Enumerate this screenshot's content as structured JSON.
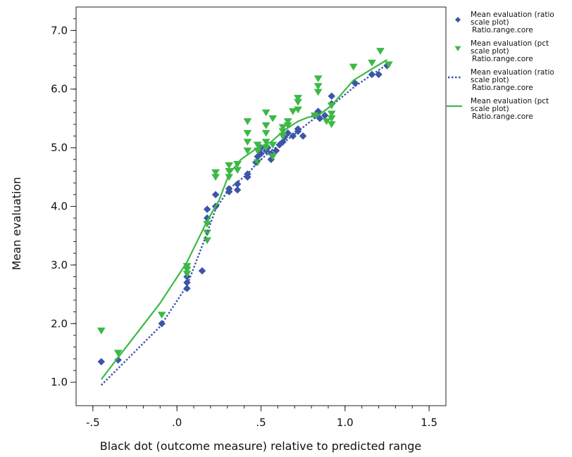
{
  "chart_data": {
    "type": "scatter",
    "title": "",
    "xlabel": "Black dot (outcome measure) relative to predicted range",
    "ylabel": "Mean evaluation",
    "xlim": [
      -0.6,
      1.6
    ],
    "ylim": [
      0.6,
      7.4
    ],
    "x_ticks": [
      -0.5,
      0.0,
      0.5,
      1.0,
      1.5
    ],
    "x_tick_labels": [
      "-.5",
      ".0",
      ".5",
      "1.0",
      "1.5"
    ],
    "y_ticks": [
      1.0,
      2.0,
      3.0,
      4.0,
      5.0,
      6.0,
      7.0
    ],
    "y_tick_labels": [
      "1.0",
      "2.0",
      "3.0",
      "4.0",
      "5.0",
      "6.0",
      "7.0"
    ],
    "grid": false,
    "legend_position": "right",
    "colors": {
      "ratio": "#3d55a8",
      "pct": "#3cb944"
    },
    "series": [
      {
        "name": "Mean evaluation (ratio scale plot) Ratio.range.core",
        "legend_lines": [
          "Mean evaluation (ratio",
          "scale plot)",
          "Ratio.range.core"
        ],
        "kind": "scatter",
        "marker": "diamond",
        "color": "#3d55a8",
        "points": [
          [
            -0.45,
            1.35
          ],
          [
            -0.35,
            1.38
          ],
          [
            -0.09,
            2.0
          ],
          [
            0.06,
            2.6
          ],
          [
            0.06,
            2.7
          ],
          [
            0.06,
            2.8
          ],
          [
            0.15,
            2.9
          ],
          [
            0.18,
            3.8
          ],
          [
            0.18,
            3.95
          ],
          [
            0.23,
            4.0
          ],
          [
            0.23,
            4.2
          ],
          [
            0.31,
            4.25
          ],
          [
            0.31,
            4.3
          ],
          [
            0.36,
            4.28
          ],
          [
            0.36,
            4.38
          ],
          [
            0.42,
            4.5
          ],
          [
            0.42,
            4.55
          ],
          [
            0.47,
            4.75
          ],
          [
            0.48,
            4.85
          ],
          [
            0.5,
            4.9
          ],
          [
            0.5,
            5.0
          ],
          [
            0.53,
            4.95
          ],
          [
            0.54,
            5.0
          ],
          [
            0.56,
            4.8
          ],
          [
            0.56,
            4.9
          ],
          [
            0.59,
            4.95
          ],
          [
            0.61,
            5.05
          ],
          [
            0.63,
            5.1
          ],
          [
            0.64,
            5.18
          ],
          [
            0.66,
            5.25
          ],
          [
            0.69,
            5.2
          ],
          [
            0.72,
            5.28
          ],
          [
            0.72,
            5.32
          ],
          [
            0.75,
            5.2
          ],
          [
            0.82,
            5.55
          ],
          [
            0.84,
            5.62
          ],
          [
            0.85,
            5.5
          ],
          [
            0.88,
            5.55
          ],
          [
            0.92,
            5.75
          ],
          [
            0.92,
            5.88
          ],
          [
            1.06,
            6.1
          ],
          [
            1.16,
            6.25
          ],
          [
            1.2,
            6.25
          ],
          [
            1.25,
            6.4
          ]
        ]
      },
      {
        "name": "Mean evaluation (pct scale plot) Ratio.range.core",
        "legend_lines": [
          "Mean evaluation (pct",
          "scale plot)",
          "Ratio.range.core"
        ],
        "kind": "scatter",
        "marker": "triangle-down",
        "color": "#3cb944",
        "points": [
          [
            -0.45,
            1.88
          ],
          [
            -0.35,
            1.5
          ],
          [
            -0.09,
            2.15
          ],
          [
            0.06,
            2.85
          ],
          [
            0.06,
            2.92
          ],
          [
            0.06,
            2.98
          ],
          [
            0.18,
            3.42
          ],
          [
            0.18,
            3.55
          ],
          [
            0.18,
            3.7
          ],
          [
            0.23,
            4.5
          ],
          [
            0.23,
            4.58
          ],
          [
            0.31,
            4.5
          ],
          [
            0.31,
            4.6
          ],
          [
            0.31,
            4.7
          ],
          [
            0.36,
            4.62
          ],
          [
            0.36,
            4.72
          ],
          [
            0.42,
            4.95
          ],
          [
            0.42,
            5.1
          ],
          [
            0.42,
            5.25
          ],
          [
            0.42,
            5.45
          ],
          [
            0.48,
            4.75
          ],
          [
            0.48,
            4.95
          ],
          [
            0.48,
            5.05
          ],
          [
            0.53,
            5.0
          ],
          [
            0.53,
            5.1
          ],
          [
            0.53,
            5.25
          ],
          [
            0.53,
            5.38
          ],
          [
            0.53,
            5.6
          ],
          [
            0.57,
            4.85
          ],
          [
            0.57,
            5.05
          ],
          [
            0.57,
            5.5
          ],
          [
            0.63,
            5.2
          ],
          [
            0.63,
            5.28
          ],
          [
            0.63,
            5.35
          ],
          [
            0.66,
            5.38
          ],
          [
            0.66,
            5.45
          ],
          [
            0.69,
            5.62
          ],
          [
            0.72,
            5.65
          ],
          [
            0.72,
            5.78
          ],
          [
            0.72,
            5.85
          ],
          [
            0.82,
            5.55
          ],
          [
            0.84,
            5.95
          ],
          [
            0.84,
            6.05
          ],
          [
            0.84,
            6.18
          ],
          [
            0.89,
            5.45
          ],
          [
            0.92,
            5.4
          ],
          [
            0.92,
            5.5
          ],
          [
            0.92,
            5.58
          ],
          [
            0.92,
            5.72
          ],
          [
            1.05,
            6.38
          ],
          [
            1.16,
            6.45
          ],
          [
            1.21,
            6.65
          ],
          [
            1.26,
            6.42
          ]
        ]
      },
      {
        "name": "Mean evaluation (ratio scale plot) Ratio.range.core",
        "legend_lines": [
          "Mean evaluation (ratio",
          "scale plot)",
          "Ratio.range.core"
        ],
        "kind": "line",
        "style": "dotted",
        "color": "#3d55a8",
        "points": [
          [
            -0.45,
            0.95
          ],
          [
            -0.1,
            1.95
          ],
          [
            0.06,
            2.65
          ],
          [
            0.18,
            3.55
          ],
          [
            0.23,
            3.95
          ],
          [
            0.31,
            4.3
          ],
          [
            0.42,
            4.55
          ],
          [
            0.48,
            4.75
          ],
          [
            0.56,
            4.95
          ],
          [
            0.64,
            5.1
          ],
          [
            0.72,
            5.28
          ],
          [
            0.84,
            5.55
          ],
          [
            0.92,
            5.72
          ],
          [
            1.06,
            6.05
          ],
          [
            1.25,
            6.42
          ]
        ]
      },
      {
        "name": "Mean evaluation (pct scale plot) Ratio.range.core",
        "legend_lines": [
          "Mean evaluation (pct",
          "scale plot)",
          "Ratio.range.core"
        ],
        "kind": "line",
        "style": "solid",
        "color": "#3cb944",
        "points": [
          [
            -0.45,
            1.05
          ],
          [
            -0.1,
            2.35
          ],
          [
            0.06,
            3.05
          ],
          [
            0.18,
            3.75
          ],
          [
            0.25,
            4.1
          ],
          [
            0.31,
            4.55
          ],
          [
            0.38,
            4.8
          ],
          [
            0.48,
            5.0
          ],
          [
            0.56,
            5.1
          ],
          [
            0.64,
            5.3
          ],
          [
            0.72,
            5.45
          ],
          [
            0.78,
            5.52
          ],
          [
            0.84,
            5.55
          ],
          [
            0.92,
            5.72
          ],
          [
            1.05,
            6.15
          ],
          [
            1.25,
            6.5
          ]
        ]
      }
    ]
  }
}
